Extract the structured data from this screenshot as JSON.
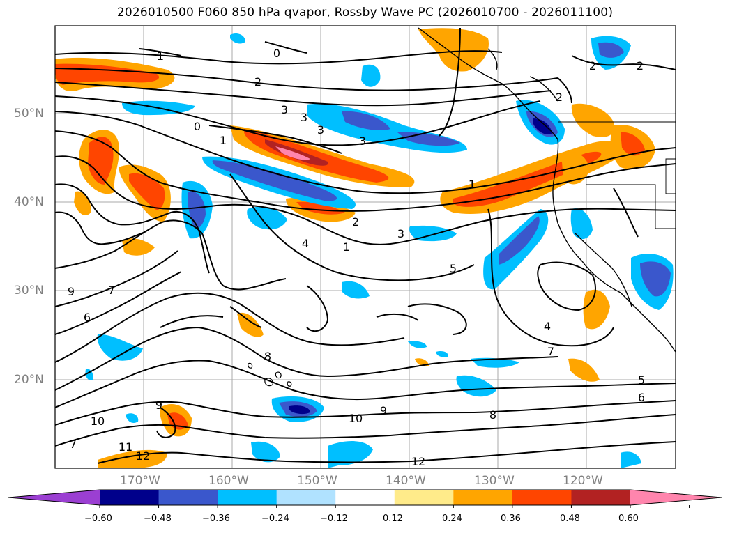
{
  "title": "2026010500 F060 850 hPa qvapor, Rossby Wave PC (2026010700 - 2026011100)",
  "lat_labels": [
    "50°N",
    "40°N",
    "30°N",
    "20°N"
  ],
  "lon_labels": [
    "170°W",
    "160°W",
    "150°W",
    "140°W",
    "130°W",
    "120°W"
  ],
  "colorbar": {
    "ticks": [
      "−0.60",
      "−0.48",
      "−0.36",
      "−0.24",
      "−0.12",
      "0.12",
      "0.24",
      "0.36",
      "0.48",
      "0.60"
    ],
    "colors": [
      "#9b3fd2",
      "#00008b",
      "#3a57cc",
      "#00bfff",
      "#b0e2ff",
      "#ffffff",
      "#ffeb8a",
      "#ffa500",
      "#ff4500",
      "#b22222",
      "#ff85ad"
    ]
  },
  "contour_labels": [
    "1",
    "0",
    "2",
    "3",
    "3",
    "3",
    "0",
    "1",
    "3",
    "1",
    "2",
    "4",
    "1",
    "3",
    "5",
    "4",
    "7",
    "6",
    "9",
    "7",
    "8",
    "9",
    "10",
    "8",
    "9",
    "10",
    "11",
    "12",
    "12",
    "7",
    "5",
    "6",
    "2",
    "2",
    "2"
  ]
}
